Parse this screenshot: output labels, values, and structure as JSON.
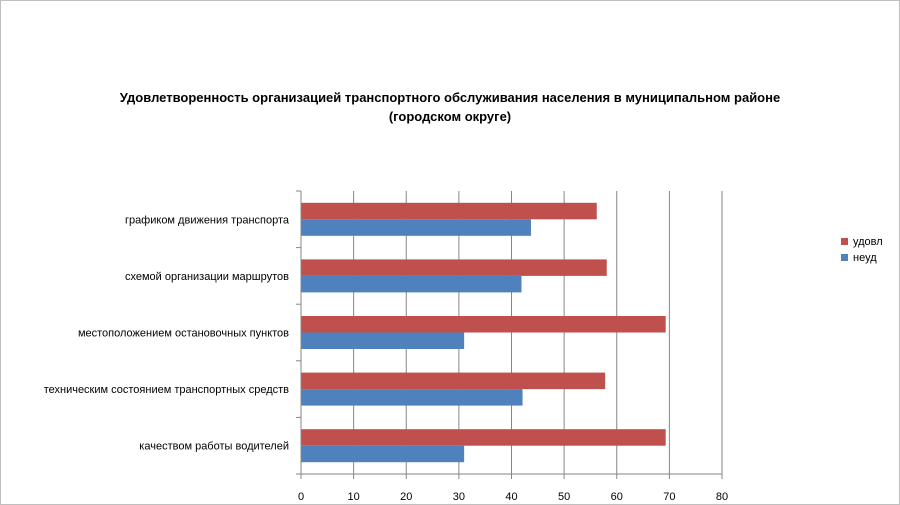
{
  "chart_data": {
    "type": "bar",
    "orientation": "horizontal",
    "title_line1": "Удовлетворенность организацией транспортного обслуживания населения в муниципальном районе",
    "title_line2": "(городском округе)",
    "categories": [
      "качеством работы водителей",
      "техническим состоянием транспортных средств",
      "местоположением остановочных пунктов",
      "схемой организации маршрутов",
      "графиком движения транспорта"
    ],
    "series": [
      {
        "name": "удовл",
        "color": "#c0504d",
        "values": [
          69.3,
          57.8,
          69.3,
          58.1,
          56.2
        ]
      },
      {
        "name": "неуд",
        "color": "#4f81bd",
        "values": [
          31.0,
          42.1,
          31.0,
          41.9,
          43.7
        ]
      }
    ],
    "xlim": [
      0,
      80
    ],
    "xticks": [
      0,
      10,
      20,
      30,
      40,
      50,
      60,
      70,
      80
    ],
    "grid": true,
    "legend_position": "right"
  }
}
